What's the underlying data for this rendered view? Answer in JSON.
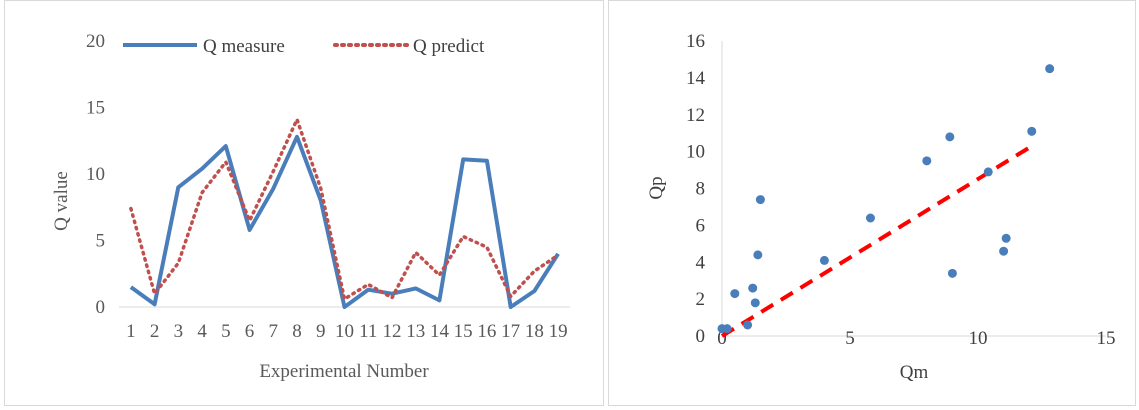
{
  "chart_data": [
    {
      "type": "line",
      "title": "",
      "xlabel": "Experimental Number",
      "ylabel": "Q value",
      "categories": [
        "1",
        "2",
        "3",
        "4",
        "5",
        "6",
        "7",
        "8",
        "9",
        "10",
        "11",
        "12",
        "13",
        "14",
        "15",
        "16",
        "17",
        "18",
        "19"
      ],
      "ylim": [
        0,
        20
      ],
      "yticks": [
        "0",
        "5",
        "10",
        "15",
        "20"
      ],
      "legend_position": "top",
      "grid": false,
      "series": [
        {
          "name": "Q measure",
          "color": "#4a7ebb",
          "style": "solid",
          "values": [
            1.5,
            0.2,
            9.0,
            10.4,
            12.1,
            5.8,
            8.9,
            12.8,
            8.0,
            0.0,
            1.3,
            1.0,
            1.4,
            0.5,
            11.1,
            11.0,
            0.0,
            1.2,
            4.0
          ]
        },
        {
          "name": "Q predict",
          "color": "#c0504d",
          "style": "dotted",
          "values": [
            7.4,
            1.0,
            3.3,
            8.6,
            10.9,
            6.5,
            10.2,
            14.1,
            8.9,
            0.6,
            1.7,
            0.7,
            4.1,
            2.4,
            5.3,
            4.5,
            0.8,
            2.7,
            3.9
          ]
        }
      ]
    },
    {
      "type": "scatter",
      "title": "",
      "xlabel": "Qm",
      "ylabel": "Qp",
      "xlim": [
        0,
        15
      ],
      "ylim": [
        0,
        16
      ],
      "xticks": [
        "0",
        "5",
        "10",
        "15"
      ],
      "yticks": [
        "0",
        "2",
        "4",
        "6",
        "8",
        "10",
        "12",
        "14",
        "16"
      ],
      "grid": false,
      "point_color": "#4a7ebb",
      "trendline": {
        "color": "#ff0000",
        "style": "dashed",
        "x": [
          0,
          12.1
        ],
        "y": [
          0,
          10.3
        ]
      },
      "points": [
        {
          "x": 0.0,
          "y": 0.4
        },
        {
          "x": 0.2,
          "y": 0.4
        },
        {
          "x": 0.5,
          "y": 2.3
        },
        {
          "x": 1.0,
          "y": 0.6
        },
        {
          "x": 1.2,
          "y": 2.6
        },
        {
          "x": 1.3,
          "y": 1.8
        },
        {
          "x": 1.4,
          "y": 4.4
        },
        {
          "x": 1.5,
          "y": 7.4
        },
        {
          "x": 4.0,
          "y": 4.1
        },
        {
          "x": 5.8,
          "y": 6.4
        },
        {
          "x": 8.0,
          "y": 9.5
        },
        {
          "x": 8.9,
          "y": 10.8
        },
        {
          "x": 9.0,
          "y": 3.4
        },
        {
          "x": 10.4,
          "y": 8.9
        },
        {
          "x": 11.0,
          "y": 4.6
        },
        {
          "x": 11.1,
          "y": 5.3
        },
        {
          "x": 12.1,
          "y": 11.1
        },
        {
          "x": 12.8,
          "y": 14.5
        }
      ]
    }
  ]
}
